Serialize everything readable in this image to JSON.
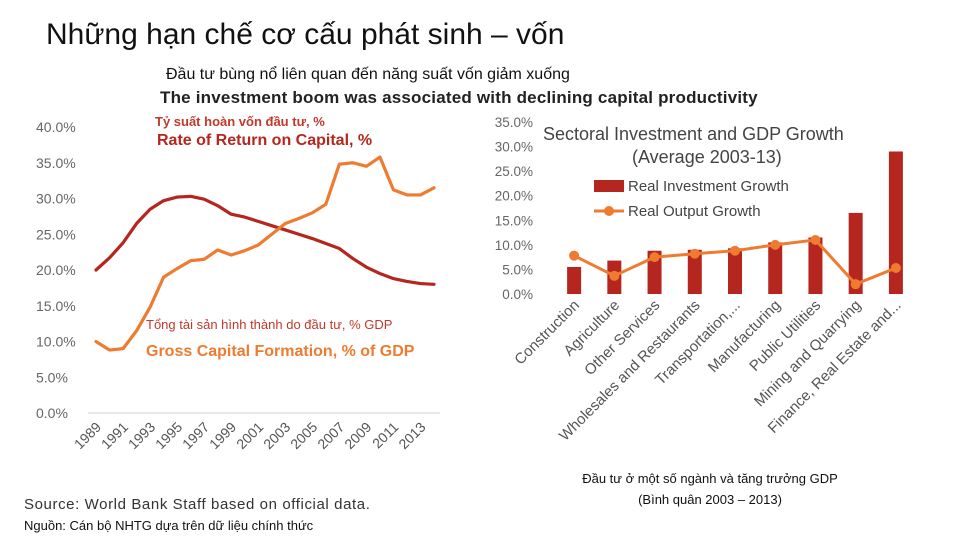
{
  "slide": {
    "title": "Những hạn chế cơ cấu phát sinh –  vốn",
    "subtitle_vi": "Đầu tư bùng nổ liên quan đến năng suất vốn giảm xuống",
    "subtitle_en": "The investment boom was associated with declining capital productivity",
    "source_en": "Source: World Bank Staff based on official data.",
    "source_vi": "Nguồn: Cán bộ NHTG dựa trên dữ liệu chính thức",
    "chart2_caption_line1": "Đầu tư ở một số ngành và tăng trưởng GDP",
    "chart2_caption_line2": "(Bình quân 2003 – 2013)"
  },
  "colors": {
    "dark_red": "#b5261e",
    "orange": "#ee7b30",
    "axis_text": "#555555",
    "grid": "#d9d9d9"
  },
  "chart_data": [
    {
      "type": "line",
      "x": [
        1989,
        1990,
        1991,
        1992,
        1993,
        1994,
        1995,
        1996,
        1997,
        1998,
        1999,
        2000,
        2001,
        2002,
        2003,
        2004,
        2005,
        2006,
        2007,
        2008,
        2009,
        2010,
        2011,
        2012,
        2013,
        2014
      ],
      "x_tick_labels": [
        "1989",
        "1991",
        "1993",
        "1995",
        "1997",
        "1999",
        "2001",
        "2003",
        "2005",
        "2007",
        "2009",
        "2011",
        "2013"
      ],
      "y_tick_labels": [
        "0.0%",
        "5.0%",
        "10.0%",
        "15.0%",
        "20.0%",
        "25.0%",
        "30.0%",
        "35.0%",
        "40.0%"
      ],
      "ylim": [
        0,
        40
      ],
      "series": [
        {
          "name": "Rate of Return on Capital, %",
          "label_vi": "Tỷ suất hoàn vốn đầu tư, %",
          "label_en": "Rate of Return on Capital, %",
          "color": "#b5261e",
          "values": [
            20.0,
            21.7,
            23.8,
            26.5,
            28.5,
            29.7,
            30.2,
            30.3,
            29.9,
            29.0,
            27.8,
            27.4,
            26.8,
            26.2,
            25.6,
            25.0,
            24.4,
            23.7,
            23.0,
            21.6,
            20.4,
            19.5,
            18.8,
            18.4,
            18.1,
            18.0
          ]
        },
        {
          "name": "Gross Capital Formation, % of GDP",
          "label_vi": "Tổng tài sản hình thành do đầu tư, % GDP",
          "label_en": "Gross Capital Formation, % of GDP",
          "color": "#ee7b30",
          "values": [
            10.0,
            8.8,
            9.0,
            11.5,
            14.8,
            19.0,
            20.2,
            21.3,
            21.5,
            22.8,
            22.1,
            22.7,
            23.5,
            25.0,
            26.5,
            27.2,
            28.0,
            29.2,
            34.8,
            35.0,
            34.5,
            35.8,
            31.2,
            30.5,
            30.5,
            31.5
          ]
        }
      ]
    },
    {
      "type": "bar",
      "title": "Sectoral Investment and GDP Growth",
      "subtitle": "(Average 2003-13)",
      "categories": [
        "Construction",
        "Agriculture",
        "Other Services",
        "Wholesales and Restaurants",
        "Transportation,...",
        "Manufacturing",
        "Public Utilities",
        "Mining and Quarrying",
        "Finance, Real Estate and..."
      ],
      "y_tick_labels": [
        "0.0%",
        "5.0%",
        "10.0%",
        "15.0%",
        "20.0%",
        "25.0%",
        "30.0%",
        "35.0%"
      ],
      "ylim": [
        0,
        35
      ],
      "series": [
        {
          "name": "Real Investment Growth",
          "type": "bar",
          "color": "#b5261e",
          "values": [
            5.5,
            6.8,
            8.8,
            9.0,
            9.3,
            10.5,
            11.5,
            16.5,
            29.0
          ]
        },
        {
          "name": "Real Output Growth",
          "type": "line",
          "color": "#ee7b30",
          "values": [
            7.8,
            3.7,
            7.5,
            8.2,
            8.8,
            10.0,
            11.0,
            2.0,
            5.3
          ]
        }
      ]
    }
  ]
}
